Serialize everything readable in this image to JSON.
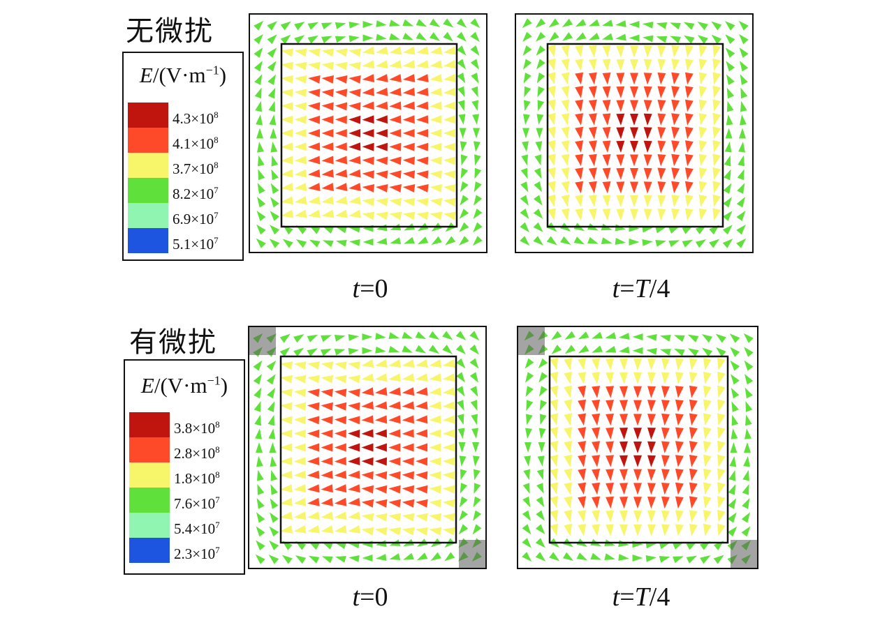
{
  "rows": [
    {
      "title": "无微扰",
      "legend": {
        "title_symbol": "E",
        "title_unit": "/(V·m",
        "title_exp": "−1",
        "title_close": ")",
        "entries": [
          {
            "label": "4.3×10",
            "exp": "8",
            "color": "#c0150f"
          },
          {
            "label": "4.1×10",
            "exp": "8",
            "color": "#ff4a2a"
          },
          {
            "label": "3.7×10",
            "exp": "8",
            "color": "#f7f56a"
          },
          {
            "label": "8.2×10",
            "exp": "7",
            "color": "#5fe03a"
          },
          {
            "label": "6.9×10",
            "exp": "7",
            "color": "#8ff5b0"
          },
          {
            "label": "5.1×10",
            "exp": "7",
            "color": "#1e55e0"
          }
        ]
      },
      "panels": [
        {
          "caption_var": "t",
          "caption_rest": "=0",
          "caption_var2": "",
          "caption_end": "",
          "mode": "h",
          "defects": false
        },
        {
          "caption_var": "t",
          "caption_rest": "=",
          "caption_var2": "T",
          "caption_end": "/4",
          "mode": "v",
          "defects": false
        }
      ]
    },
    {
      "title": "有微扰",
      "legend": {
        "title_symbol": "E",
        "title_unit": "/(V·m",
        "title_exp": "−1",
        "title_close": ")",
        "entries": [
          {
            "label": "3.8×10",
            "exp": "8",
            "color": "#c0150f"
          },
          {
            "label": "2.8×10",
            "exp": "8",
            "color": "#ff4a2a"
          },
          {
            "label": "1.8×10",
            "exp": "8",
            "color": "#f7f56a"
          },
          {
            "label": "7.6×10",
            "exp": "7",
            "color": "#5fe03a"
          },
          {
            "label": "5.4×10",
            "exp": "7",
            "color": "#8ff5b0"
          },
          {
            "label": "2.3×10",
            "exp": "7",
            "color": "#1e55e0"
          }
        ]
      },
      "panels": [
        {
          "caption_var": "t",
          "caption_rest": "=0",
          "caption_var2": "",
          "caption_end": "",
          "mode": "h",
          "defects": true
        },
        {
          "caption_var": "t",
          "caption_rest": "=",
          "caption_var2": "T",
          "caption_end": "/4",
          "mode": "v",
          "defects": true
        }
      ]
    }
  ]
}
